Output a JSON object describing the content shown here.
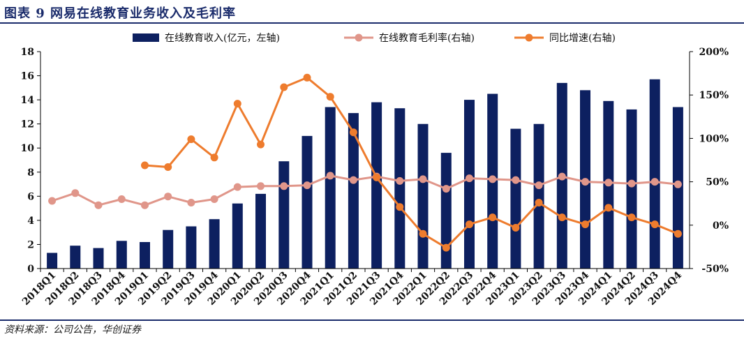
{
  "header": {
    "title": "图表 9 网易在线教育业务收入及毛利率"
  },
  "footer": {
    "source": "资料来源：公司公告，华创证券"
  },
  "colors": {
    "bar": "#0d2060",
    "margin": "#e0968a",
    "growth": "#ee7c2e",
    "rule": "#1a2b6b"
  },
  "chart_data": {
    "type": "bar",
    "categories": [
      "2018Q1",
      "2018Q2",
      "2018Q3",
      "2018Q4",
      "2019Q1",
      "2019Q2",
      "2019Q3",
      "2019Q4",
      "2020Q1",
      "2020Q2",
      "2020Q3",
      "2020Q4",
      "2021Q1",
      "2021Q2",
      "2021Q3",
      "2021Q4",
      "2022Q1",
      "2022Q2",
      "2022Q3",
      "2022Q4",
      "2023Q1",
      "2023Q2",
      "2023Q3",
      "2023Q4",
      "2024Q1",
      "2024Q2",
      "2024Q3",
      "2024Q4"
    ],
    "left_axis": {
      "ylim": [
        0,
        18
      ],
      "ticks": [
        "0",
        "2",
        "4",
        "6",
        "8",
        "10",
        "12",
        "14",
        "16",
        "18"
      ]
    },
    "right_axis": {
      "ylim": [
        -50,
        200
      ],
      "ticks": [
        "-50%",
        "0%",
        "50%",
        "100%",
        "150%",
        "200%"
      ]
    },
    "legend_placement": "top",
    "series": [
      {
        "name": "在线教育收入(亿元，左轴)",
        "kind": "bar",
        "axis": "left",
        "values": [
          1.3,
          1.9,
          1.7,
          2.3,
          2.2,
          3.2,
          3.5,
          4.1,
          5.4,
          6.2,
          8.9,
          11.0,
          13.4,
          12.9,
          13.8,
          13.3,
          12.0,
          9.6,
          14.0,
          14.5,
          11.6,
          12.0,
          15.4,
          14.8,
          13.9,
          13.2,
          15.7,
          13.4
        ]
      },
      {
        "name": "在线教育毛利率(右轴)",
        "kind": "line",
        "axis": "right",
        "values": [
          28,
          37,
          23,
          30,
          23,
          33,
          26,
          30,
          44,
          45,
          45,
          46,
          57,
          52,
          56,
          51,
          53,
          42,
          54,
          53,
          52,
          46,
          56,
          50,
          49,
          48,
          50,
          47
        ]
      },
      {
        "name": "同比增速(右轴)",
        "kind": "line",
        "axis": "right",
        "values": [
          null,
          null,
          null,
          null,
          69,
          67,
          99,
          78,
          140,
          93,
          159,
          170,
          148,
          107,
          55,
          21,
          -10,
          -26,
          1,
          9,
          -3,
          26,
          9,
          1,
          20,
          9,
          1,
          -10
        ]
      }
    ]
  }
}
